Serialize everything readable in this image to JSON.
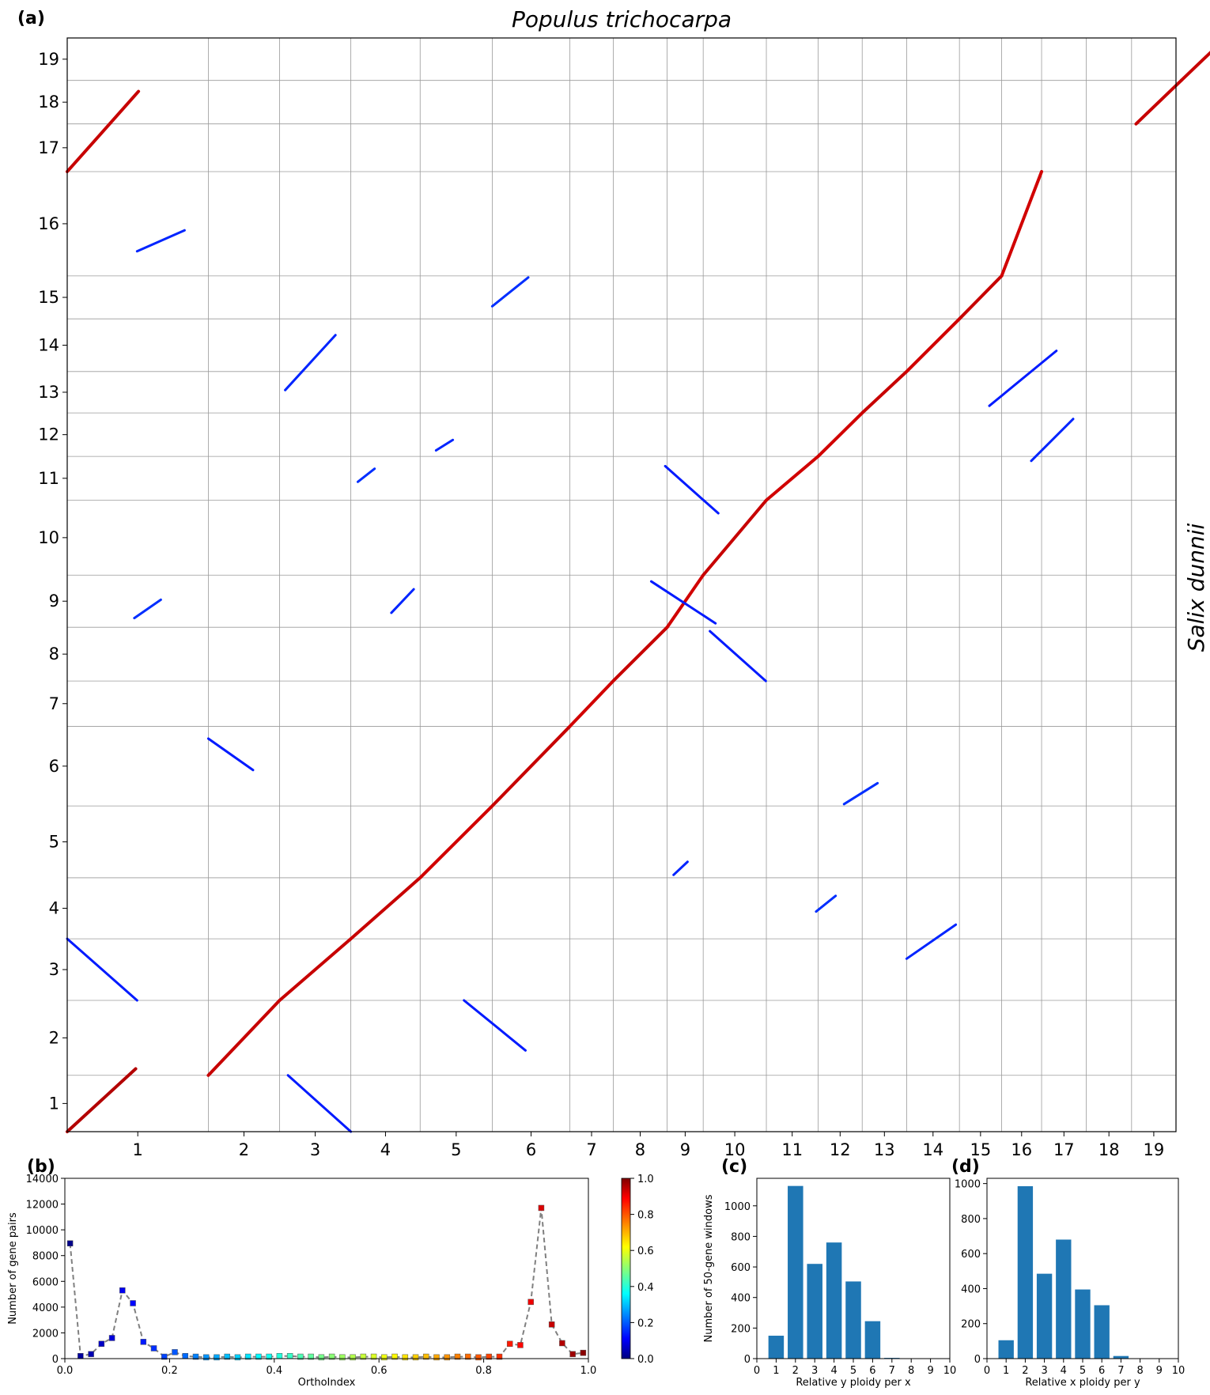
{
  "panel_labels": {
    "a": "(a)",
    "b": "(b)",
    "c": "(c)",
    "d": "(d)"
  },
  "chart_data": [
    {
      "id": "a",
      "type": "scatter",
      "title": "Populus trichocarpa",
      "ylabel": "Salix dunnii",
      "x_chromosomes": [
        "1",
        "2",
        "3",
        "4",
        "5",
        "6",
        "7",
        "8",
        "9",
        "10",
        "11",
        "12",
        "13",
        "14",
        "15",
        "16",
        "17",
        "18",
        "19"
      ],
      "x_chromosome_lengths": [
        50.5,
        25.5,
        25.5,
        24.8,
        25.8,
        27.8,
        15.5,
        19.3,
        12.9,
        22.6,
        18.5,
        15.8,
        15.9,
        18.9,
        15.1,
        14.3,
        16.0,
        16.2,
        15.9
      ],
      "y_chromosomes": [
        "1",
        "2",
        "3",
        "4",
        "5",
        "6",
        "7",
        "8",
        "9",
        "10",
        "11",
        "12",
        "13",
        "14",
        "15",
        "16",
        "17",
        "18",
        "19"
      ],
      "y_chromosome_lengths": [
        21.5,
        28.6,
        23.5,
        23.3,
        27.4,
        30.4,
        17.3,
        20.5,
        19.9,
        28.6,
        16.7,
        16.6,
        15.8,
        20.1,
        16.4,
        39.8,
        18.2,
        16.6,
        16.2
      ],
      "color_scale": "OrthoIndex (0 blue to 1 red)",
      "blocks": [
        {
          "x": [
            0.0,
            24.5
          ],
          "y": [
            0.0,
            24.0
          ],
          "oi": 0.95
        },
        {
          "x": [
            50.5,
            76.0
          ],
          "y": [
            21.5,
            50.1
          ],
          "oi": 0.93
        },
        {
          "x": [
            76.0,
            101.5
          ],
          "y": [
            50.1,
            73.6
          ],
          "oi": 0.93
        },
        {
          "x": [
            101.5,
            126.3
          ],
          "y": [
            73.6,
            96.9
          ],
          "oi": 0.93
        },
        {
          "x": [
            126.3,
            152.1
          ],
          "y": [
            96.9,
            124.3
          ],
          "oi": 0.92
        },
        {
          "x": [
            152.1,
            179.9
          ],
          "y": [
            124.3,
            154.7
          ],
          "oi": 0.93
        },
        {
          "x": [
            179.9,
            195.4
          ],
          "y": [
            154.7,
            172.0
          ],
          "oi": 0.92
        },
        {
          "x": [
            195.4,
            214.7
          ],
          "y": [
            172.0,
            192.5
          ],
          "oi": 0.93
        },
        {
          "x": [
            214.7,
            227.6
          ],
          "y": [
            192.5,
            212.4
          ],
          "oi": 0.92
        },
        {
          "x": [
            227.6,
            250.2
          ],
          "y": [
            212.4,
            241.0
          ],
          "oi": 0.93
        },
        {
          "x": [
            250.2,
            268.7
          ],
          "y": [
            241.0,
            257.7
          ],
          "oi": 0.92
        },
        {
          "x": [
            268.7,
            284.5
          ],
          "y": [
            257.7,
            274.3
          ],
          "oi": 0.92
        },
        {
          "x": [
            284.5,
            300.4
          ],
          "y": [
            274.3,
            290.1
          ],
          "oi": 0.93
        },
        {
          "x": [
            300.4,
            319.3
          ],
          "y": [
            290.1,
            310.2
          ],
          "oi": 0.92
        },
        {
          "x": [
            319.3,
            334.4
          ],
          "y": [
            310.2,
            326.6
          ],
          "oi": 0.93
        },
        {
          "x": [
            334.4,
            348.7
          ],
          "y": [
            326.6,
            366.4
          ],
          "oi": 0.92
        },
        {
          "x": [
            0.0,
            25.5
          ],
          "y": [
            366.4,
            397.0
          ],
          "oi": 0.93
        },
        {
          "x": [
            382.5,
            398.7
          ],
          "y": [
            384.6,
            401.2
          ],
          "oi": 0.93
        },
        {
          "x": [
            398.7,
            414.6
          ],
          "y": [
            401.2,
            417.4
          ],
          "oi": 0.93
        },
        {
          "x": [
            0.0,
            25.0
          ],
          "y": [
            73.6,
            50.1
          ],
          "oi": 0.15
        },
        {
          "x": [
            79.0,
            101.5
          ],
          "y": [
            21.5,
            0.0
          ],
          "oi": 0.15
        },
        {
          "x": [
            142.0,
            164.0
          ],
          "y": [
            50.1,
            31.0
          ],
          "oi": 0.15
        },
        {
          "x": [
            50.5,
            66.5
          ],
          "y": [
            150.0,
            138.0
          ],
          "oi": 0.15
        },
        {
          "x": [
            209.0,
            232.0
          ],
          "y": [
            210.0,
            194.0
          ],
          "oi": 0.15
        },
        {
          "x": [
            214.0,
            233.0
          ],
          "y": [
            254.0,
            236.0
          ],
          "oi": 0.15
        },
        {
          "x": [
            230.0,
            250.0
          ],
          "y": [
            191.0,
            172.0
          ],
          "oi": 0.15
        },
        {
          "x": [
            330.0,
            354.0
          ],
          "y": [
            277.0,
            298.0
          ],
          "oi": 0.15
        },
        {
          "x": [
            78.0,
            96.0
          ],
          "y": [
            283.0,
            304.0
          ],
          "oi": 0.16
        },
        {
          "x": [
            24.0,
            33.5
          ],
          "y": [
            196.0,
            203.0
          ],
          "oi": 0.17
        },
        {
          "x": [
            25.0,
            42.0
          ],
          "y": [
            336.0,
            344.0
          ],
          "oi": 0.16
        },
        {
          "x": [
            152.1,
            165.0
          ],
          "y": [
            315.0,
            326.0
          ],
          "oi": 0.17
        },
        {
          "x": [
            300.4,
            318.0
          ],
          "y": [
            66.0,
            79.0
          ],
          "oi": 0.16
        },
        {
          "x": [
            410.0,
            420.0
          ],
          "y": [
            278.0,
            284.0
          ],
          "oi": 0.17
        },
        {
          "x": [
            345.0,
            360.0
          ],
          "y": [
            256.0,
            272.0
          ],
          "oi": 0.16
        },
        {
          "x": [
            278.0,
            290.0
          ],
          "y": [
            125.0,
            133.0
          ],
          "oi": 0.17
        },
        {
          "x": [
            268.0,
            275.0
          ],
          "y": [
            84.0,
            90.0
          ],
          "oi": 0.17
        },
        {
          "x": [
            217.0,
            222.0
          ],
          "y": [
            98.0,
            103.0
          ],
          "oi": 0.16
        },
        {
          "x": [
            104.0,
            110.0
          ],
          "y": [
            248.0,
            253.0
          ],
          "oi": 0.17
        },
        {
          "x": [
            116.0,
            124.0
          ],
          "y": [
            198.0,
            207.0
          ],
          "oi": 0.16
        },
        {
          "x": [
            132.0,
            138.0
          ],
          "y": [
            260.0,
            264.0
          ],
          "oi": 0.16
        }
      ]
    },
    {
      "id": "b",
      "type": "line",
      "xlabel": "OrthoIndex",
      "ylabel": "Number of gene pairs",
      "xlim": [
        0,
        1.0
      ],
      "ylim": [
        0,
        14000
      ],
      "x_ticks": [
        "0.0",
        "0.2",
        "0.4",
        "0.6",
        "0.8",
        "1.0"
      ],
      "y_ticks": [
        "0",
        "2000",
        "4000",
        "6000",
        "8000",
        "10000",
        "12000",
        "14000"
      ],
      "x": [
        0.01,
        0.03,
        0.05,
        0.07,
        0.09,
        0.11,
        0.13,
        0.15,
        0.17,
        0.19,
        0.21,
        0.23,
        0.25,
        0.27,
        0.29,
        0.31,
        0.33,
        0.35,
        0.37,
        0.39,
        0.41,
        0.43,
        0.45,
        0.47,
        0.49,
        0.51,
        0.53,
        0.55,
        0.57,
        0.59,
        0.61,
        0.63,
        0.65,
        0.67,
        0.69,
        0.71,
        0.73,
        0.75,
        0.77,
        0.79,
        0.81,
        0.83,
        0.85,
        0.87,
        0.89,
        0.91,
        0.93,
        0.95,
        0.97,
        0.99
      ],
      "values": [
        8950,
        200,
        350,
        1150,
        1600,
        5300,
        4300,
        1300,
        800,
        150,
        500,
        200,
        150,
        100,
        100,
        150,
        100,
        150,
        150,
        150,
        200,
        200,
        150,
        150,
        100,
        150,
        100,
        100,
        150,
        150,
        100,
        150,
        100,
        100,
        150,
        100,
        100,
        150,
        150,
        100,
        150,
        150,
        1150,
        1050,
        4400,
        11700,
        2650,
        1200,
        350,
        450
      ],
      "colorbar": {
        "range": [
          0,
          1.0
        ],
        "ticks": [
          "0.0",
          "0.2",
          "0.4",
          "0.6",
          "0.8",
          "1.0"
        ]
      }
    },
    {
      "id": "c",
      "type": "bar",
      "xlabel": "Relative y ploidy per x",
      "ylabel": "Number of 50-gene windows",
      "categories": [
        "0",
        "1",
        "2",
        "3",
        "4",
        "5",
        "6",
        "7",
        "8",
        "9",
        "10"
      ],
      "x": [
        1,
        2,
        3,
        4,
        5,
        6,
        7
      ],
      "values": [
        150,
        1130,
        620,
        760,
        505,
        245,
        5
      ],
      "xlim": [
        0,
        10
      ],
      "ylim": [
        0,
        1180
      ],
      "y_ticks": [
        "0",
        "200",
        "400",
        "600",
        "800",
        "1000"
      ]
    },
    {
      "id": "d",
      "type": "bar",
      "xlabel": "Relative x ploidy per y",
      "ylabel": "",
      "categories": [
        "0",
        "1",
        "2",
        "3",
        "4",
        "5",
        "6",
        "7",
        "8",
        "9",
        "10"
      ],
      "x": [
        1,
        2,
        3,
        4,
        5,
        6,
        7
      ],
      "values": [
        105,
        985,
        485,
        680,
        395,
        305,
        15
      ],
      "xlim": [
        0,
        10
      ],
      "ylim": [
        0,
        1030
      ],
      "y_ticks": [
        "0",
        "200",
        "400",
        "600",
        "800",
        "1000"
      ]
    }
  ]
}
